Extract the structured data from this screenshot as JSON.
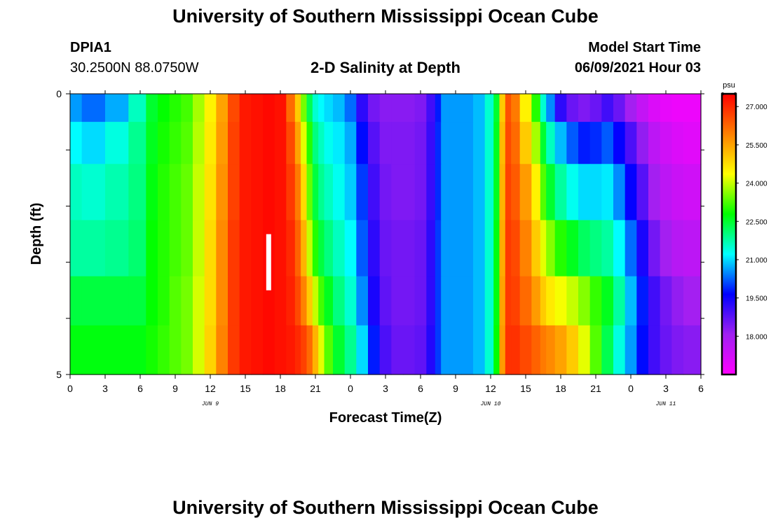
{
  "header": {
    "title": "University of Southern Mississippi Ocean Cube",
    "station_id": "DPIA1",
    "coordinates": "30.2500N  88.0750W",
    "plot_title": "2-D Salinity at Depth",
    "model_start_label": "Model Start Time",
    "model_start_value": "06/09/2021 Hour 03"
  },
  "footer": {
    "title": "University of Southern Mississippi Ocean Cube"
  },
  "chart_data": {
    "type": "heatmap",
    "title": "2-D Salinity at Depth",
    "xlabel": "Forecast Time(Z)",
    "ylabel": "Depth (ft)",
    "x_tick_labels": [
      "0",
      "3",
      "6",
      "9",
      "12",
      "15",
      "18",
      "21",
      "0",
      "3",
      "6",
      "9",
      "12",
      "15",
      "18",
      "21",
      "0",
      "3",
      "6"
    ],
    "x_range_hours": [
      0,
      54
    ],
    "date_labels": [
      {
        "label": "JUN 9",
        "hour": 12
      },
      {
        "label": "JUN 10",
        "hour": 36
      },
      {
        "label": "JUN 11",
        "hour": 51
      }
    ],
    "y_tick_labels": [
      "0",
      "5"
    ],
    "ylim": [
      0,
      5
    ],
    "y_inverted": true,
    "colorbar": {
      "unit": "psu",
      "labels": [
        "27.000",
        "25.500",
        "24.000",
        "22.500",
        "21.000",
        "19.500",
        "18.000"
      ],
      "range": [
        16.5,
        27.5
      ],
      "colors": [
        "#ff00ff",
        "#a020f0",
        "#0000ff",
        "#00ffff",
        "#00ff00",
        "#ffff00",
        "#ff8000",
        "#ff0000"
      ]
    },
    "marker": {
      "hour": 17,
      "depth_from": 2.5,
      "depth_to": 3.5,
      "color": "#ffffff"
    },
    "depth_levels": [
      0.25,
      0.75,
      1.75,
      2.75,
      3.75,
      4.5
    ],
    "x_hours": [
      0,
      2,
      4,
      6,
      7,
      8,
      9,
      10,
      11,
      12,
      13,
      14,
      15,
      16,
      17,
      18,
      19,
      19.5,
      20,
      20.5,
      21,
      21.5,
      22,
      23,
      24,
      25,
      26,
      27,
      28,
      29,
      30,
      31,
      31.5,
      32,
      33,
      34,
      35,
      36,
      36.5,
      37,
      37.5,
      38,
      39,
      40,
      40.5,
      41,
      42,
      43,
      44,
      45,
      46,
      47,
      48,
      49,
      50,
      51,
      52,
      53,
      54
    ],
    "salinity": [
      [
        20.6,
        20.3,
        20.7,
        21.6,
        22.5,
        22.8,
        23.0,
        23.2,
        23.8,
        24.5,
        25.5,
        26.6,
        27.2,
        27.3,
        27.4,
        27.3,
        26.2,
        25.0,
        23.5,
        22.3,
        21.5,
        21.2,
        21.0,
        20.8,
        20.3,
        19.2,
        18.5,
        18.3,
        18.3,
        18.3,
        18.4,
        19.0,
        19.8,
        20.6,
        20.6,
        20.6,
        20.8,
        21.5,
        22.5,
        25.0,
        26.5,
        26.0,
        24.5,
        23.0,
        21.5,
        20.5,
        19.2,
        18.6,
        18.4,
        18.6,
        19.0,
        18.6,
        18.0,
        17.5,
        17.1,
        16.9,
        16.8,
        16.8,
        16.8
      ],
      [
        21.2,
        21.0,
        21.4,
        21.9,
        22.6,
        22.9,
        23.1,
        23.3,
        23.9,
        24.6,
        25.6,
        26.7,
        27.2,
        27.3,
        27.4,
        27.3,
        26.6,
        25.5,
        24.2,
        23.0,
        22.0,
        21.6,
        21.3,
        21.1,
        20.7,
        19.7,
        18.8,
        18.4,
        18.4,
        18.4,
        18.5,
        19.1,
        19.9,
        20.6,
        20.6,
        20.6,
        20.8,
        21.5,
        22.6,
        25.2,
        26.6,
        26.2,
        25.0,
        23.8,
        22.5,
        21.6,
        20.8,
        20.2,
        19.8,
        19.9,
        20.2,
        19.6,
        18.9,
        18.2,
        17.6,
        17.3,
        17.1,
        17.0,
        17.0
      ],
      [
        21.6,
        21.5,
        21.7,
        22.0,
        22.7,
        23.0,
        23.2,
        23.4,
        24.0,
        24.7,
        25.7,
        26.7,
        27.2,
        27.3,
        27.4,
        27.3,
        26.8,
        26.0,
        24.8,
        23.4,
        22.4,
        21.9,
        21.6,
        21.3,
        20.9,
        20.0,
        19.0,
        18.5,
        18.4,
        18.4,
        18.5,
        19.1,
        19.9,
        20.6,
        20.6,
        20.6,
        20.8,
        21.5,
        22.6,
        25.3,
        26.7,
        26.4,
        25.6,
        24.5,
        23.3,
        22.5,
        21.8,
        21.3,
        21.0,
        21.0,
        21.1,
        20.5,
        19.6,
        18.8,
        18.0,
        17.6,
        17.4,
        17.3,
        17.3
      ],
      [
        21.8,
        21.8,
        21.9,
        22.1,
        22.8,
        23.0,
        23.2,
        23.4,
        24.0,
        24.8,
        25.8,
        26.8,
        27.2,
        27.3,
        27.4,
        27.3,
        27.0,
        26.3,
        25.3,
        24.0,
        23.0,
        22.4,
        22.0,
        21.6,
        21.2,
        20.2,
        19.2,
        18.6,
        18.5,
        18.5,
        18.6,
        19.2,
        20.0,
        20.6,
        20.6,
        20.6,
        20.8,
        21.5,
        22.7,
        25.4,
        26.8,
        26.6,
        25.9,
        25.0,
        24.2,
        23.6,
        23.0,
        22.6,
        22.2,
        22.0,
        21.8,
        21.2,
        20.3,
        19.4,
        18.5,
        18.0,
        17.7,
        17.6,
        17.6
      ],
      [
        22.4,
        22.4,
        22.4,
        22.4,
        22.8,
        23.0,
        23.3,
        23.5,
        24.1,
        24.8,
        25.8,
        26.8,
        27.2,
        27.3,
        27.4,
        27.3,
        27.1,
        26.6,
        25.9,
        25.0,
        24.0,
        23.2,
        22.6,
        22.0,
        21.5,
        20.5,
        19.4,
        18.7,
        18.5,
        18.5,
        18.6,
        19.2,
        20.0,
        20.6,
        20.6,
        20.6,
        20.8,
        21.5,
        22.7,
        25.5,
        26.8,
        26.7,
        26.2,
        25.6,
        25.0,
        24.6,
        24.3,
        24.0,
        23.6,
        23.1,
        22.6,
        21.8,
        20.8,
        19.8,
        19.0,
        18.5,
        18.2,
        18.0,
        18.0
      ],
      [
        22.7,
        22.7,
        22.7,
        22.7,
        22.9,
        23.1,
        23.3,
        23.5,
        24.1,
        24.9,
        25.9,
        26.8,
        27.2,
        27.3,
        27.4,
        27.3,
        27.2,
        27.0,
        26.7,
        26.2,
        25.3,
        24.2,
        23.3,
        22.5,
        21.9,
        21.0,
        19.8,
        18.9,
        18.6,
        18.6,
        18.7,
        19.3,
        20.0,
        20.6,
        20.6,
        20.6,
        20.8,
        21.5,
        22.8,
        25.6,
        26.9,
        26.9,
        26.6,
        26.3,
        26.0,
        25.8,
        25.5,
        25.0,
        24.2,
        23.3,
        22.3,
        21.4,
        20.6,
        19.7,
        19.0,
        18.6,
        18.4,
        18.3,
        18.3
      ]
    ]
  }
}
